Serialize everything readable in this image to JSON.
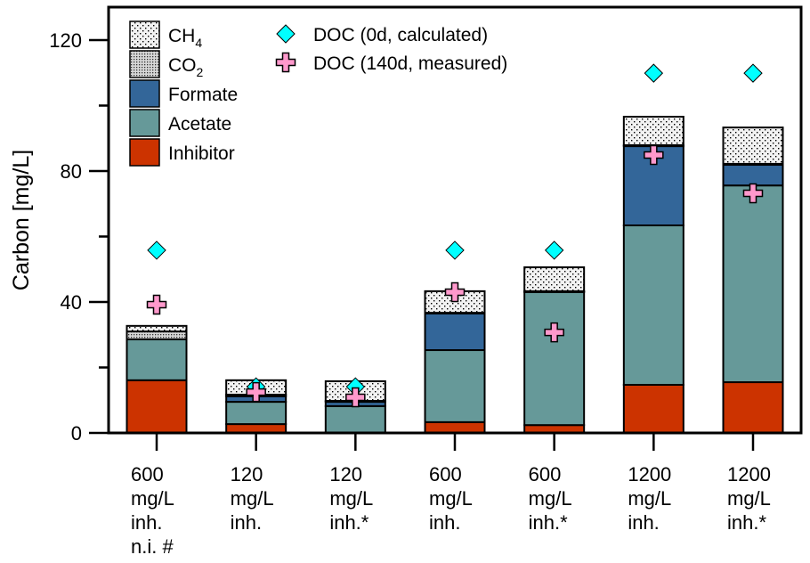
{
  "chart_data": {
    "type": "bar",
    "stacked": true,
    "title": "",
    "xlabel": "",
    "ylabel": "Carbon [mg/L]",
    "ylim": [
      0,
      120
    ],
    "yticks_major": [
      0,
      40,
      80,
      120
    ],
    "yticks_minor": [
      20,
      60,
      100
    ],
    "grid": false,
    "legend_placement": "top-left",
    "categories": [
      [
        "600",
        "mg/L",
        "inh.",
        "n.i. #"
      ],
      [
        "120",
        "mg/L",
        "inh."
      ],
      [
        "120",
        "mg/L",
        "inh.*"
      ],
      [
        "600",
        "mg/L",
        "inh."
      ],
      [
        "600",
        "mg/L",
        "inh.*"
      ],
      [
        "1200",
        "mg/L",
        "inh."
      ],
      [
        "1200",
        "mg/L",
        "inh.*"
      ]
    ],
    "series": [
      {
        "name": "Inhibitor",
        "label_main": "Inhibitor",
        "label_sub": "",
        "color": "#cc3300",
        "pattern": "solid",
        "values": [
          16.1,
          2.7,
          0.0,
          3.3,
          2.4,
          14.7,
          15.5
        ]
      },
      {
        "name": "Acetate",
        "label_main": "Acetate",
        "label_sub": "",
        "color": "#669999",
        "pattern": "solid",
        "values": [
          12.5,
          6.8,
          8.2,
          22.0,
          40.6,
          48.7,
          60.1
        ]
      },
      {
        "name": "Formate",
        "label_main": "Formate",
        "label_sub": "",
        "color": "#336699",
        "pattern": "solid",
        "values": [
          0.0,
          1.7,
          1.3,
          11.2,
          0.2,
          24.2,
          6.3
        ]
      },
      {
        "name": "CO2",
        "label_main": "CO",
        "label_sub": "2",
        "color": "#b0b0b0",
        "pattern": "dense-dots",
        "values": [
          2.4,
          0.5,
          0.3,
          0.2,
          0.1,
          0.3,
          0.3
        ]
      },
      {
        "name": "CH4",
        "label_main": "CH",
        "label_sub": "4",
        "color": "#eeeeee",
        "pattern": "sparse-dots",
        "values": [
          1.7,
          4.4,
          6.0,
          6.6,
          7.3,
          8.7,
          11.1
        ]
      }
    ],
    "markers": [
      {
        "name": "DOC (0d, calculated)",
        "shape": "diamond",
        "color": "#00ffff",
        "values": [
          55.8,
          14.1,
          14.1,
          55.8,
          55.8,
          109.9,
          109.9
        ]
      },
      {
        "name": "DOC (140d, measured)",
        "shape": "cross",
        "color": "#ff99cc",
        "values": [
          39.2,
          12.5,
          10.9,
          43.0,
          30.7,
          84.9,
          73.2
        ]
      }
    ]
  }
}
